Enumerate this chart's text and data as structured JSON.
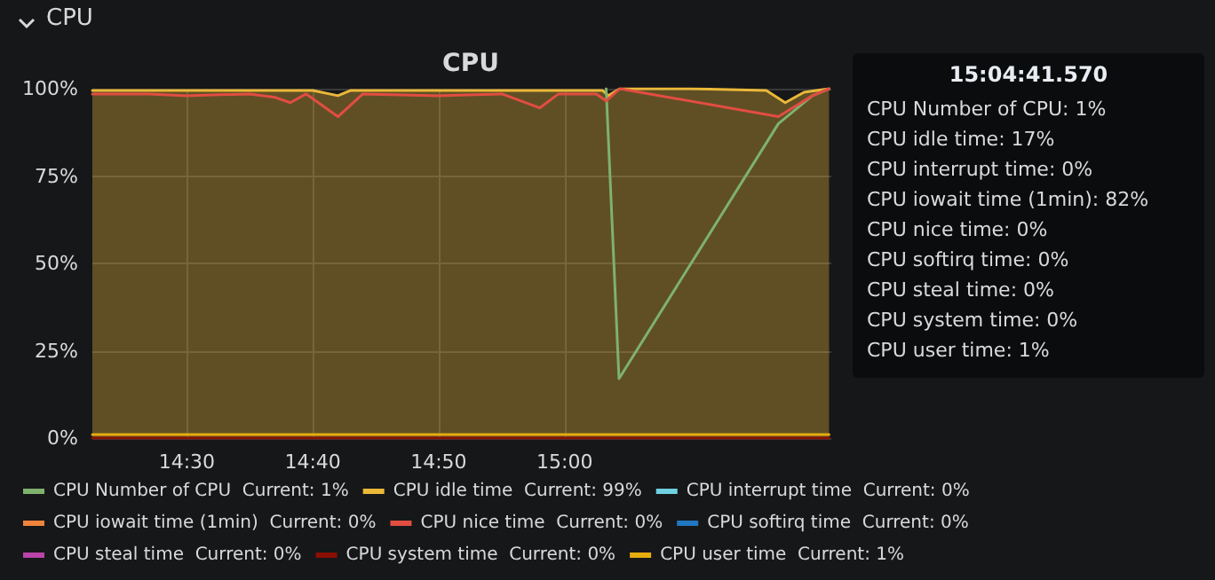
{
  "chart_data": {
    "type": "line",
    "title": "CPU",
    "annotations": [
      "CPU",
      "15:04:41.570",
      "CPU Number of CPU: 1%",
      "CPU idle time: 17%",
      "CPU interrupt time: 0%",
      "CPU iowait time (1min): 82%",
      "CPU nice time: 0%",
      "CPU softirq time: 0%",
      "CPU steal time: 0%",
      "CPU system time: 0%",
      "CPU user time: 1%"
    ],
    "xlim": [
      14.375,
      15.353
    ],
    "xticks": [
      {
        "value": 14.5,
        "label": "14:30"
      },
      {
        "value": 14.6667,
        "label": "14:40"
      },
      {
        "value": 14.8333,
        "label": "14:50"
      },
      {
        "value": 15,
        "label": "15:00"
      }
    ],
    "ylim": [
      0,
      100
    ],
    "yticks": [
      {
        "value": 0,
        "label": "0%"
      },
      {
        "value": 25,
        "label": "25%"
      },
      {
        "value": 50,
        "label": "50%"
      },
      {
        "value": 75,
        "label": "75%"
      },
      {
        "value": 100,
        "label": "100%"
      }
    ],
    "grid": true,
    "legend": "bottom",
    "marker": "none",
    "line_style": "solid",
    "series": [
      {
        "name": "CPU Number of CPU  Current: 1%",
        "color": "#7eb26d",
        "x": [
          15.055,
          15.072,
          15.283,
          15.328,
          15.35
        ],
        "values": [
          100,
          17,
          90,
          98,
          100
        ]
      },
      {
        "name": "CPU idle time  Current: 99%",
        "color": "#eab839",
        "type": "area",
        "x": [
          14.375,
          14.667,
          14.7,
          14.717,
          15.05,
          15.058,
          15.073,
          15.167,
          15.267,
          15.292,
          15.317,
          15.35
        ],
        "values": [
          99.5,
          99.5,
          98,
          99.5,
          99.5,
          98,
          100,
          100,
          99.5,
          96,
          99,
          100
        ]
      },
      {
        "name": "CPU interrupt time  Current: 0%",
        "color": "#6ed0e0"
      },
      {
        "name": "CPU iowait time (1min)  Current: 0%",
        "color": "#ef843c"
      },
      {
        "name": "CPU nice time  Current: 0%",
        "color": "#e24d42",
        "x": [
          14.375,
          14.45,
          14.5,
          14.583,
          14.617,
          14.637,
          14.658,
          14.7,
          14.733,
          14.833,
          14.917,
          14.967,
          14.992,
          15.042,
          15.055,
          15.073,
          15.283,
          15.328,
          15.35
        ],
        "values": [
          98.5,
          98.5,
          98,
          98.5,
          97.5,
          96,
          98.5,
          92,
          98.5,
          98,
          98.5,
          94.5,
          98.5,
          98.5,
          96.5,
          100,
          92,
          98,
          100
        ]
      },
      {
        "name": "CPU softirq time  Current: 0%",
        "color": "#1f78c1"
      },
      {
        "name": "CPU steal time  Current: 0%",
        "color": "#ba43a9"
      },
      {
        "name": "CPU system time  Current: 0%",
        "color": "#890f02",
        "x": [
          14.375,
          15.35
        ],
        "values": [
          0,
          0
        ]
      },
      {
        "name": "CPU user time  Current: 1%",
        "color": "#e5ac0e",
        "x": [
          14.375,
          15.35
        ],
        "values": [
          1,
          1
        ]
      }
    ]
  }
}
